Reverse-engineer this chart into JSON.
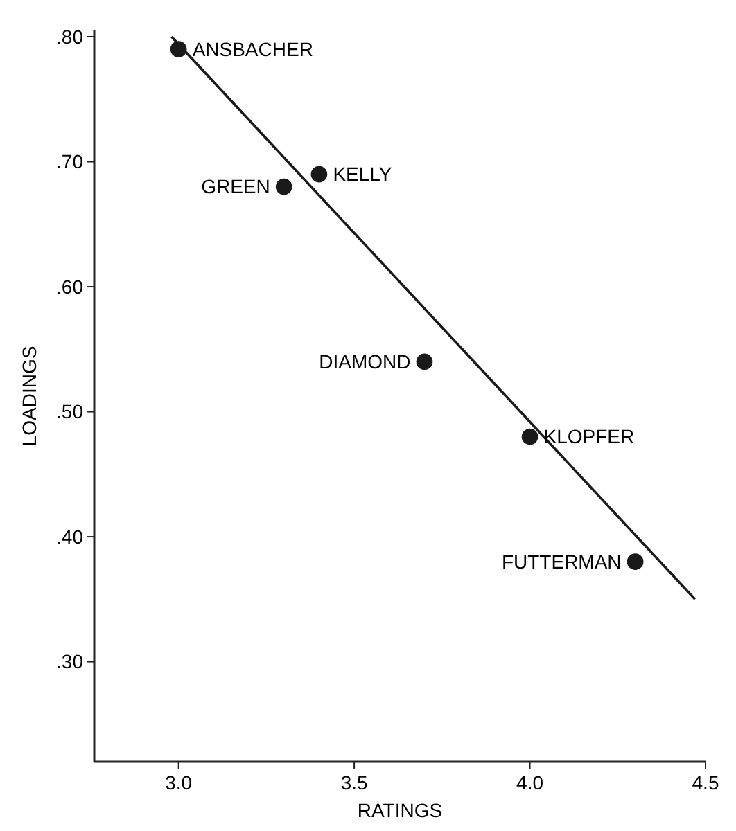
{
  "chart_data": {
    "type": "scatter",
    "xlabel": "RATINGS",
    "ylabel": "LOADINGS",
    "xlim": [
      2.76,
      4.5
    ],
    "ylim": [
      0.22,
      0.805
    ],
    "xticks": [
      {
        "value": 3.0,
        "label": "3.0"
      },
      3.5,
      {
        "value": 4.0,
        "label": "4.0"
      },
      4.5
    ],
    "yticks": [
      {
        "value": 0.3,
        "label": ".30"
      },
      {
        "value": 0.4,
        "label": ".40"
      },
      {
        "value": 0.5,
        "label": ".50"
      },
      {
        "value": 0.6,
        "label": ".60"
      },
      {
        "value": 0.7,
        "label": ".70"
      },
      {
        "value": 0.8,
        "label": ".80"
      }
    ],
    "grid": false,
    "series": [
      {
        "type": "scatter",
        "marker": "circle",
        "color": "#1a1a1a",
        "x": [
          3.0,
          3.3,
          3.4,
          3.7,
          4.0,
          4.3
        ],
        "values": [
          0.79,
          0.68,
          0.69,
          0.54,
          0.48,
          0.38
        ]
      },
      {
        "type": "line",
        "color": "#1a1a1a",
        "x": [
          2.98,
          4.47
        ],
        "values": [
          0.8,
          0.35
        ]
      }
    ],
    "annotations": [
      {
        "text": "ANSBACHER",
        "x": 3.0,
        "y": 0.79
      },
      {
        "text": "GREEN",
        "x": 3.3,
        "y": 0.68
      },
      {
        "text": "KELLY",
        "x": 3.4,
        "y": 0.69
      },
      {
        "text": "DIAMOND",
        "x": 3.7,
        "y": 0.54
      },
      {
        "text": "KLOPFER",
        "x": 4.0,
        "y": 0.48
      },
      {
        "text": "FUTTERMAN",
        "x": 4.3,
        "y": 0.38
      }
    ]
  }
}
